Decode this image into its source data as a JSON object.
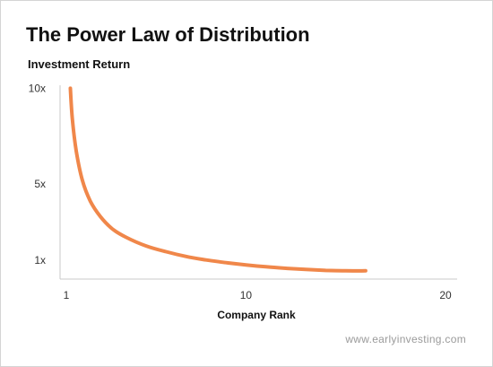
{
  "chart_data": {
    "type": "line",
    "title": "The Power Law of Distribution",
    "xlabel": "Company Rank",
    "ylabel": "Investment Return",
    "xlim": [
      1,
      20
    ],
    "ylim": [
      0,
      10
    ],
    "xticks": [
      {
        "value": 1,
        "label": "1"
      },
      {
        "value": 10,
        "label": "10"
      },
      {
        "value": 20,
        "label": "20"
      }
    ],
    "yticks": [
      {
        "value": 1,
        "label": "1x"
      },
      {
        "value": 5,
        "label": "5x"
      },
      {
        "value": 10,
        "label": "10x"
      }
    ],
    "grid": false,
    "series": [
      {
        "color": "#f0874a",
        "x": [
          1.2,
          1.3,
          1.5,
          1.8,
          2.2,
          2.7,
          3.3,
          4,
          5,
          6,
          7,
          8,
          9,
          10,
          11,
          12,
          13,
          14,
          15,
          16
        ],
        "y": [
          10,
          8.4,
          6.7,
          5.2,
          4.1,
          3.3,
          2.65,
          2.2,
          1.75,
          1.45,
          1.2,
          1.02,
          0.88,
          0.76,
          0.66,
          0.58,
          0.52,
          0.47,
          0.45,
          0.45
        ]
      }
    ]
  },
  "source_credit": "www.earlyinvesting.com"
}
